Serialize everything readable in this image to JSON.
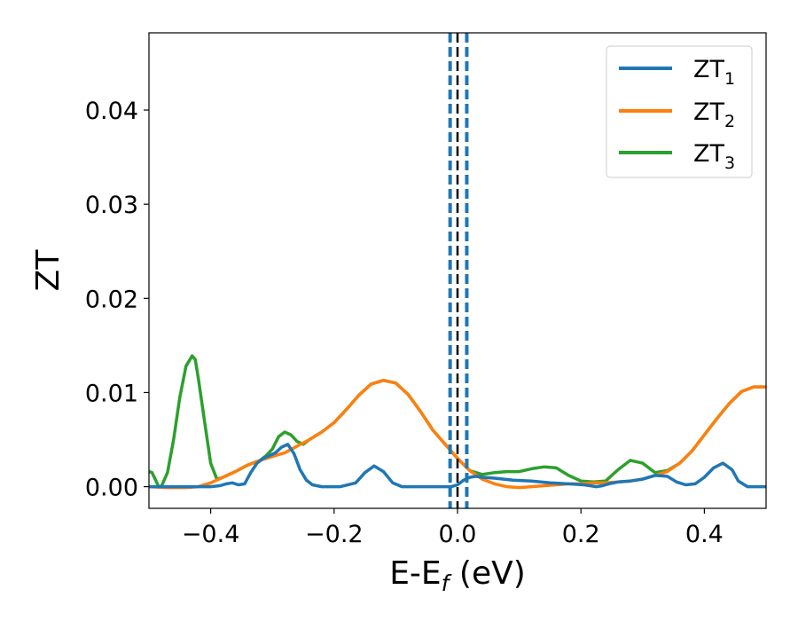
{
  "chart_data": {
    "type": "line",
    "xlabel": "E-E",
    "xlabel_sub": "f",
    "xlabel_unit": " (eV)",
    "ylabel": "ZT",
    "xlim": [
      -0.5,
      0.5
    ],
    "ylim": [
      -0.0023,
      0.0482
    ],
    "grid": false,
    "legend_placement": "top-right",
    "x_ticks": [
      -0.4,
      -0.2,
      0.0,
      0.2,
      0.4
    ],
    "x_tick_labels": [
      "−0.4",
      "−0.2",
      "0.0",
      "0.2",
      "0.4"
    ],
    "y_ticks": [
      0.0,
      0.01,
      0.02,
      0.03,
      0.04
    ],
    "y_tick_labels": [
      "0.00",
      "0.01",
      "0.02",
      "0.03",
      "0.04"
    ],
    "vlines": [
      {
        "x": -0.012,
        "style": "dashed",
        "color": "#1f77b4"
      },
      {
        "x": 0.0,
        "style": "dashed",
        "color": "#000000"
      },
      {
        "x": 0.015,
        "style": "dashed",
        "color": "#1f77b4"
      }
    ],
    "series": [
      {
        "name": "ZT",
        "sub": "1",
        "color": "#1f77b4",
        "points": [
          [
            -0.5,
            0.0
          ],
          [
            -0.45,
            0.0
          ],
          [
            -0.4,
            0.0
          ],
          [
            -0.385,
            0.0001
          ],
          [
            -0.375,
            0.0003
          ],
          [
            -0.365,
            0.0004
          ],
          [
            -0.355,
            0.0002
          ],
          [
            -0.345,
            0.0003
          ],
          [
            -0.335,
            0.0015
          ],
          [
            -0.325,
            0.0025
          ],
          [
            -0.315,
            0.003
          ],
          [
            -0.305,
            0.0033
          ],
          [
            -0.295,
            0.0036
          ],
          [
            -0.285,
            0.0042
          ],
          [
            -0.275,
            0.0045
          ],
          [
            -0.265,
            0.0035
          ],
          [
            -0.255,
            0.0018
          ],
          [
            -0.245,
            0.0007
          ],
          [
            -0.235,
            0.0002
          ],
          [
            -0.22,
            0.0
          ],
          [
            -0.19,
            0.0
          ],
          [
            -0.165,
            0.0004
          ],
          [
            -0.15,
            0.0015
          ],
          [
            -0.135,
            0.0022
          ],
          [
            -0.12,
            0.0016
          ],
          [
            -0.105,
            0.0004
          ],
          [
            -0.09,
            0.0
          ],
          [
            -0.04,
            0.0
          ],
          [
            -0.01,
            0.0
          ],
          [
            0.0,
            0.0002
          ],
          [
            0.01,
            0.0007
          ],
          [
            0.02,
            0.001
          ],
          [
            0.03,
            0.0011
          ],
          [
            0.04,
            0.001
          ],
          [
            0.06,
            0.0009
          ],
          [
            0.09,
            0.0007
          ],
          [
            0.12,
            0.0006
          ],
          [
            0.15,
            0.0004
          ],
          [
            0.18,
            0.0003
          ],
          [
            0.205,
            0.0002
          ],
          [
            0.215,
            0.0001
          ],
          [
            0.225,
            0.0
          ],
          [
            0.235,
            0.0001
          ],
          [
            0.245,
            0.0003
          ],
          [
            0.26,
            0.0005
          ],
          [
            0.28,
            0.0006
          ],
          [
            0.3,
            0.0008
          ],
          [
            0.32,
            0.0012
          ],
          [
            0.34,
            0.0011
          ],
          [
            0.355,
            0.0005
          ],
          [
            0.37,
            0.0002
          ],
          [
            0.385,
            0.0003
          ],
          [
            0.4,
            0.001
          ],
          [
            0.415,
            0.002
          ],
          [
            0.43,
            0.0025
          ],
          [
            0.445,
            0.0018
          ],
          [
            0.455,
            0.0006
          ],
          [
            0.47,
            0.0
          ],
          [
            0.5,
            0.0
          ]
        ]
      },
      {
        "name": "ZT",
        "sub": "2",
        "color": "#ff7f0e",
        "points": [
          [
            -0.5,
            0.0
          ],
          [
            -0.47,
            -0.0001
          ],
          [
            -0.44,
            -0.0001
          ],
          [
            -0.42,
            0.0
          ],
          [
            -0.4,
            0.0004
          ],
          [
            -0.38,
            0.001
          ],
          [
            -0.36,
            0.0016
          ],
          [
            -0.34,
            0.0023
          ],
          [
            -0.32,
            0.0028
          ],
          [
            -0.3,
            0.0032
          ],
          [
            -0.28,
            0.0036
          ],
          [
            -0.26,
            0.0043
          ],
          [
            -0.24,
            0.005
          ],
          [
            -0.22,
            0.0058
          ],
          [
            -0.2,
            0.0068
          ],
          [
            -0.18,
            0.0082
          ],
          [
            -0.16,
            0.0097
          ],
          [
            -0.14,
            0.0109
          ],
          [
            -0.12,
            0.0113
          ],
          [
            -0.1,
            0.011
          ],
          [
            -0.08,
            0.0098
          ],
          [
            -0.06,
            0.008
          ],
          [
            -0.04,
            0.006
          ],
          [
            -0.02,
            0.0045
          ],
          [
            0.0,
            0.003
          ],
          [
            0.02,
            0.0017
          ],
          [
            0.04,
            0.0008
          ],
          [
            0.06,
            0.0003
          ],
          [
            0.08,
            0.0
          ],
          [
            0.1,
            -0.0001
          ],
          [
            0.12,
            0.0
          ],
          [
            0.14,
            0.0001
          ],
          [
            0.16,
            0.0002
          ],
          [
            0.18,
            0.0003
          ],
          [
            0.2,
            0.0003
          ],
          [
            0.22,
            0.0004
          ],
          [
            0.24,
            0.0004
          ],
          [
            0.26,
            0.0005
          ],
          [
            0.28,
            0.0006
          ],
          [
            0.3,
            0.0008
          ],
          [
            0.32,
            0.0012
          ],
          [
            0.34,
            0.0016
          ],
          [
            0.36,
            0.0025
          ],
          [
            0.38,
            0.0038
          ],
          [
            0.4,
            0.0055
          ],
          [
            0.42,
            0.0072
          ],
          [
            0.44,
            0.0088
          ],
          [
            0.46,
            0.0101
          ],
          [
            0.48,
            0.0106
          ],
          [
            0.5,
            0.0106
          ]
        ]
      },
      {
        "name": "ZT",
        "sub": "3",
        "color": "#2ca02c",
        "points": [
          [
            -0.5,
            0.0016
          ],
          [
            -0.495,
            0.0015
          ],
          [
            -0.49,
            0.0008
          ],
          [
            -0.485,
            0.0001
          ],
          [
            -0.48,
            0.0
          ],
          [
            -0.47,
            0.0015
          ],
          [
            -0.46,
            0.005
          ],
          [
            -0.45,
            0.0095
          ],
          [
            -0.44,
            0.0128
          ],
          [
            -0.43,
            0.0139
          ],
          [
            -0.425,
            0.0135
          ],
          [
            -0.42,
            0.0115
          ],
          [
            -0.41,
            0.007
          ],
          [
            -0.4,
            0.0025
          ],
          [
            -0.39,
            0.0008
          ],
          [
            -0.38,
            0.001
          ],
          [
            -0.36,
            0.0016
          ],
          [
            -0.34,
            0.0023
          ],
          [
            -0.32,
            0.0028
          ],
          [
            -0.31,
            0.0033
          ],
          [
            -0.3,
            0.004
          ],
          [
            -0.29,
            0.0053
          ],
          [
            -0.28,
            0.0058
          ],
          [
            -0.27,
            0.0055
          ],
          [
            -0.26,
            0.0048
          ],
          [
            -0.25,
            0.0045
          ],
          [
            -0.24,
            0.005
          ],
          [
            -0.22,
            0.0058
          ],
          [
            -0.2,
            0.0068
          ],
          [
            -0.18,
            0.0082
          ],
          [
            -0.16,
            0.0097
          ],
          [
            -0.14,
            0.0109
          ],
          [
            -0.12,
            0.0113
          ],
          [
            -0.1,
            0.011
          ],
          [
            -0.08,
            0.0098
          ],
          [
            -0.06,
            0.008
          ],
          [
            -0.04,
            0.006
          ],
          [
            -0.02,
            0.0045
          ],
          [
            0.0,
            0.003
          ],
          [
            0.02,
            0.0017
          ],
          [
            0.04,
            0.0013
          ],
          [
            0.06,
            0.0015
          ],
          [
            0.08,
            0.0016
          ],
          [
            0.1,
            0.0016
          ],
          [
            0.12,
            0.0019
          ],
          [
            0.14,
            0.0021
          ],
          [
            0.16,
            0.002
          ],
          [
            0.18,
            0.0012
          ],
          [
            0.2,
            0.0006
          ],
          [
            0.22,
            0.0005
          ],
          [
            0.24,
            0.0006
          ],
          [
            0.26,
            0.0018
          ],
          [
            0.28,
            0.0028
          ],
          [
            0.3,
            0.0025
          ],
          [
            0.32,
            0.0015
          ],
          [
            0.34,
            0.0017
          ],
          [
            0.36,
            0.0025
          ],
          [
            0.38,
            0.0038
          ],
          [
            0.4,
            0.0055
          ],
          [
            0.42,
            0.0072
          ],
          [
            0.44,
            0.0088
          ],
          [
            0.46,
            0.0101
          ],
          [
            0.48,
            0.0106
          ],
          [
            0.5,
            0.0106
          ]
        ]
      }
    ]
  }
}
